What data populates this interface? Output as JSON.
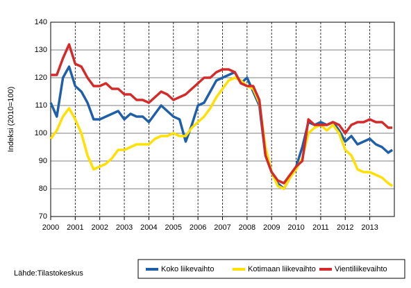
{
  "chart_data": {
    "type": "line",
    "ylabel": "Indeksi (2010=100)",
    "source": "Lähde:Tilastokeskus",
    "x": [
      2000,
      2000.25,
      2000.5,
      2000.75,
      2001,
      2001.25,
      2001.5,
      2001.75,
      2002,
      2002.25,
      2002.5,
      2002.75,
      2003,
      2003.25,
      2003.5,
      2003.75,
      2004,
      2004.25,
      2004.5,
      2004.75,
      2005,
      2005.25,
      2005.5,
      2005.75,
      2006,
      2006.25,
      2006.5,
      2006.75,
      2007,
      2007.25,
      2007.5,
      2007.75,
      2008,
      2008.25,
      2008.5,
      2008.75,
      2009,
      2009.25,
      2009.5,
      2009.75,
      2010,
      2010.25,
      2010.5,
      2010.75,
      2011,
      2011.25,
      2011.5,
      2011.75,
      2012,
      2012.25,
      2012.5,
      2012.75,
      2013,
      2013.25,
      2013.5,
      2013.75,
      2013.92
    ],
    "series": [
      {
        "name": "Koko liikevaihto",
        "color": "#1f5fa8",
        "values": [
          111,
          106,
          120,
          124,
          117,
          115,
          111,
          105,
          105,
          106,
          107,
          108,
          105,
          107,
          106,
          106,
          104,
          107,
          110,
          108,
          106,
          105,
          97,
          103,
          110,
          111,
          115,
          119,
          120,
          121,
          122,
          118,
          120,
          115,
          110,
          92,
          86,
          82,
          80,
          84,
          88,
          95,
          104,
          103,
          104,
          103,
          104,
          101,
          97,
          99,
          96,
          97,
          98,
          96,
          95,
          93,
          94
        ]
      },
      {
        "name": "Kotimaan liikevaihto",
        "color": "#ffe000",
        "values": [
          98,
          101,
          106,
          109,
          105,
          100,
          92,
          87,
          88,
          89,
          91,
          94,
          94,
          95,
          96,
          96,
          96,
          98,
          99,
          99,
          100,
          99,
          99,
          102,
          104,
          106,
          109,
          113,
          116,
          119,
          120,
          119,
          117,
          116,
          111,
          95,
          86,
          81,
          80,
          84,
          87,
          91,
          100,
          102,
          103,
          101,
          103,
          100,
          94,
          92,
          87,
          86,
          86,
          85,
          84,
          82,
          81
        ]
      },
      {
        "name": "Vientiliikevaihto",
        "color": "#d42a2a",
        "values": [
          121,
          121,
          127,
          132,
          125,
          124,
          120,
          117,
          117,
          118,
          116,
          116,
          114,
          114,
          112,
          112,
          111,
          113,
          115,
          114,
          112,
          113,
          114,
          116,
          118,
          120,
          120,
          122,
          123,
          123,
          122,
          118,
          117,
          117,
          112,
          92,
          86,
          83,
          82,
          85,
          88,
          90,
          105,
          103,
          103,
          103,
          104,
          103,
          100,
          103,
          104,
          104,
          105,
          104,
          104,
          102,
          102
        ]
      }
    ],
    "xlim": [
      2000,
      2014
    ],
    "xticks": [
      2000,
      2001,
      2002,
      2003,
      2004,
      2005,
      2006,
      2007,
      2008,
      2009,
      2010,
      2011,
      2012,
      2013
    ],
    "ylim": [
      70,
      140
    ],
    "yticks": [
      70,
      80,
      90,
      100,
      110,
      120,
      130,
      140
    ],
    "grid": true
  }
}
